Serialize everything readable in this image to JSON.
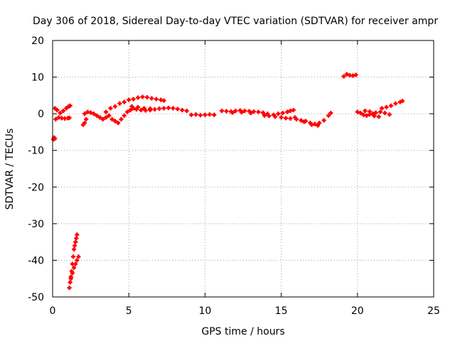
{
  "chart_data": {
    "type": "scatter",
    "title": "Day 306 of 2018, Sidereal Day-to-day VTEC variation (SDTVAR) for receiver ampr",
    "xlabel": "GPS time / hours",
    "ylabel": "SDTVAR / TECUs",
    "xlim": [
      0,
      25
    ],
    "ylim": [
      -50,
      20
    ],
    "xticks": [
      0,
      5,
      10,
      15,
      20,
      25
    ],
    "yticks": [
      20,
      10,
      0,
      -10,
      -20,
      -30,
      -40,
      -50
    ],
    "xtick_labels": [
      "0",
      "5",
      "10",
      "15",
      "20",
      "25"
    ],
    "ytick_labels": [
      "20",
      "10",
      "0",
      "-10",
      "-20",
      "-30",
      "-40",
      "-50"
    ],
    "grid": true,
    "marker_color": "#ff0000",
    "series": [
      {
        "name": "SDTVAR",
        "points": [
          [
            0.05,
            -7.0
          ],
          [
            0.1,
            -6.5
          ],
          [
            0.15,
            -6.8
          ],
          [
            0.2,
            -1.5
          ],
          [
            0.4,
            -1.0
          ],
          [
            0.6,
            -1.2
          ],
          [
            0.8,
            -1.3
          ],
          [
            1.0,
            -1.2
          ],
          [
            1.1,
            -1.1
          ],
          [
            0.15,
            1.5
          ],
          [
            0.3,
            1.0
          ],
          [
            0.5,
            0.2
          ],
          [
            0.7,
            0.8
          ],
          [
            0.9,
            1.5
          ],
          [
            1.05,
            2.0
          ],
          [
            1.15,
            2.2
          ],
          [
            1.1,
            -47.5
          ],
          [
            1.15,
            -46
          ],
          [
            1.2,
            -45
          ],
          [
            1.25,
            -43
          ],
          [
            1.3,
            -41
          ],
          [
            1.35,
            -39
          ],
          [
            1.4,
            -37
          ],
          [
            1.45,
            -36
          ],
          [
            1.5,
            -35
          ],
          [
            1.55,
            -34
          ],
          [
            1.6,
            -33
          ],
          [
            1.2,
            -44.5
          ],
          [
            1.3,
            -43.5
          ],
          [
            1.4,
            -42
          ],
          [
            1.5,
            -41
          ],
          [
            1.6,
            -40
          ],
          [
            1.7,
            -39
          ],
          [
            2.0,
            -3.0
          ],
          [
            2.1,
            -2.5
          ],
          [
            2.2,
            -1.5
          ],
          [
            2.1,
            0.0
          ],
          [
            2.3,
            0.5
          ],
          [
            2.5,
            0.3
          ],
          [
            2.7,
            0.0
          ],
          [
            2.9,
            -0.5
          ],
          [
            3.1,
            -1.0
          ],
          [
            3.3,
            -1.5
          ],
          [
            3.5,
            -1.0
          ],
          [
            3.7,
            -0.5
          ],
          [
            3.5,
            0.5
          ],
          [
            3.8,
            1.5
          ],
          [
            4.1,
            2.0
          ],
          [
            4.4,
            2.8
          ],
          [
            4.7,
            3.2
          ],
          [
            5.0,
            3.8
          ],
          [
            5.3,
            4.0
          ],
          [
            5.6,
            4.4
          ],
          [
            5.9,
            4.6
          ],
          [
            6.2,
            4.5
          ],
          [
            6.5,
            4.2
          ],
          [
            6.8,
            4.0
          ],
          [
            7.1,
            3.8
          ],
          [
            7.3,
            3.6
          ],
          [
            3.9,
            -1.5
          ],
          [
            4.1,
            -2.0
          ],
          [
            4.3,
            -2.5
          ],
          [
            4.5,
            -1.5
          ],
          [
            4.7,
            -0.5
          ],
          [
            4.9,
            0.5
          ],
          [
            5.1,
            1.0
          ],
          [
            5.3,
            1.5
          ],
          [
            5.5,
            1.2
          ],
          [
            5.8,
            1.0
          ],
          [
            6.1,
            0.9
          ],
          [
            6.4,
            1.0
          ],
          [
            6.7,
            1.2
          ],
          [
            7.0,
            1.4
          ],
          [
            7.3,
            1.5
          ],
          [
            7.6,
            1.6
          ],
          [
            7.9,
            1.5
          ],
          [
            8.2,
            1.3
          ],
          [
            8.5,
            1.0
          ],
          [
            8.8,
            0.8
          ],
          [
            5.2,
            2.0
          ],
          [
            5.6,
            1.8
          ],
          [
            6.0,
            1.5
          ],
          [
            6.4,
            1.4
          ],
          [
            9.1,
            -0.3
          ],
          [
            9.4,
            -0.2
          ],
          [
            9.7,
            -0.4
          ],
          [
            10.0,
            -0.3
          ],
          [
            10.3,
            -0.2
          ],
          [
            10.6,
            -0.3
          ],
          [
            11.1,
            0.8
          ],
          [
            11.4,
            0.7
          ],
          [
            11.7,
            0.6
          ],
          [
            12.0,
            0.8
          ],
          [
            12.3,
            0.9
          ],
          [
            12.6,
            0.8
          ],
          [
            12.9,
            0.7
          ],
          [
            13.2,
            0.6
          ],
          [
            13.5,
            0.5
          ],
          [
            13.8,
            0.3
          ],
          [
            14.1,
            0.0
          ],
          [
            11.8,
            0.3
          ],
          [
            12.4,
            0.4
          ],
          [
            13.0,
            0.2
          ],
          [
            13.9,
            -0.5
          ],
          [
            14.2,
            -0.6
          ],
          [
            14.5,
            -0.3
          ],
          [
            14.8,
            0.0
          ],
          [
            15.1,
            0.2
          ],
          [
            15.4,
            0.5
          ],
          [
            15.6,
            0.8
          ],
          [
            15.8,
            1.0
          ],
          [
            14.6,
            -0.8
          ],
          [
            15.0,
            -1.0
          ],
          [
            15.3,
            -1.2
          ],
          [
            15.6,
            -1.3
          ],
          [
            15.9,
            -1.0
          ],
          [
            16.0,
            -1.5
          ],
          [
            16.3,
            -1.8
          ],
          [
            16.6,
            -2.0
          ],
          [
            16.9,
            -2.5
          ],
          [
            17.2,
            -2.8
          ],
          [
            17.5,
            -2.5
          ],
          [
            17.8,
            -1.8
          ],
          [
            18.1,
            -0.5
          ],
          [
            18.25,
            0.2
          ],
          [
            16.5,
            -2.2
          ],
          [
            17.0,
            -3.0
          ],
          [
            17.4,
            -3.2
          ],
          [
            19.1,
            10.2
          ],
          [
            19.3,
            10.8
          ],
          [
            19.5,
            10.5
          ],
          [
            19.7,
            10.4
          ],
          [
            19.9,
            10.6
          ],
          [
            20.0,
            0.5
          ],
          [
            20.2,
            0.2
          ],
          [
            20.4,
            -0.3
          ],
          [
            20.6,
            -0.5
          ],
          [
            20.8,
            -0.2
          ],
          [
            21.0,
            0.0
          ],
          [
            21.2,
            0.3
          ],
          [
            21.5,
            0.5
          ],
          [
            21.8,
            0.2
          ],
          [
            22.1,
            -0.2
          ],
          [
            20.5,
            0.8
          ],
          [
            20.8,
            0.6
          ],
          [
            21.1,
            -0.6
          ],
          [
            21.4,
            -0.8
          ],
          [
            21.6,
            1.5
          ],
          [
            21.9,
            1.8
          ],
          [
            22.2,
            2.2
          ],
          [
            22.5,
            2.8
          ],
          [
            22.8,
            3.2
          ],
          [
            22.95,
            3.5
          ]
        ]
      }
    ]
  }
}
